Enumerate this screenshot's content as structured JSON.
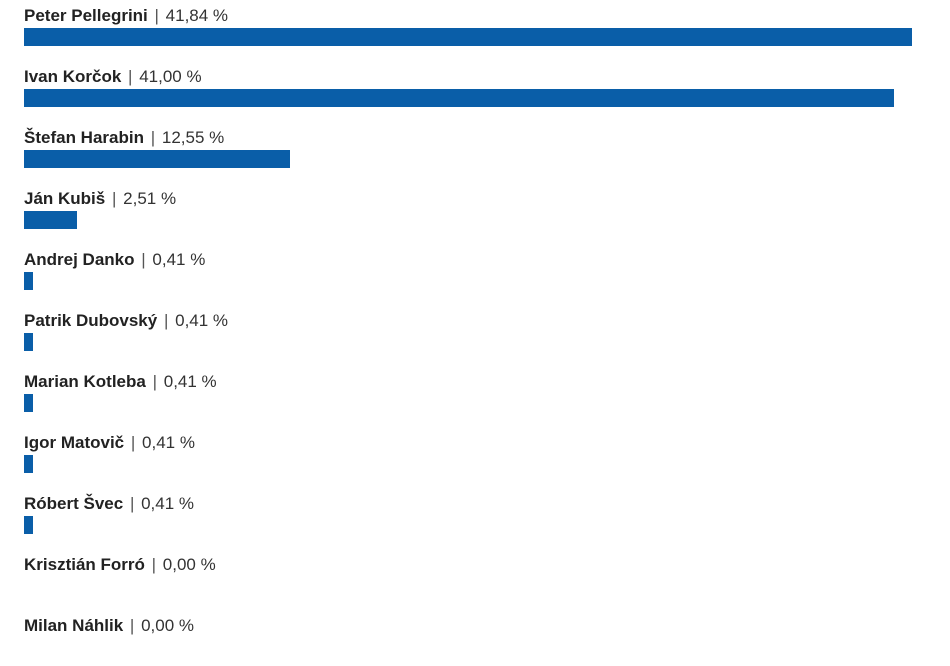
{
  "chart_data": {
    "type": "bar",
    "orientation": "horizontal",
    "title": "",
    "xlabel": "",
    "ylabel": "",
    "xlim": [
      0,
      41.84
    ],
    "unit": "%",
    "separator": "|",
    "bar_color": "#0a5ea8",
    "grid": false,
    "legend": "none",
    "categories": [
      "Peter Pellegrini",
      "Ivan Korčok",
      "Štefan Harabin",
      "Ján Kubiš",
      "Andrej Danko",
      "Patrik Dubovský",
      "Marian Kotleba",
      "Igor Matovič",
      "Róbert Švec",
      "Krisztián Forró",
      "Milan Náhlik"
    ],
    "values": [
      41.84,
      41.0,
      12.55,
      2.51,
      0.41,
      0.41,
      0.41,
      0.41,
      0.41,
      0.0,
      0.0
    ],
    "value_labels": [
      "41,84 %",
      "41,00 %",
      "12,55 %",
      "2,51 %",
      "0,41 %",
      "0,41 %",
      "0,41 %",
      "0,41 %",
      "0,41 %",
      "0,00 %",
      "0,00 %"
    ]
  }
}
